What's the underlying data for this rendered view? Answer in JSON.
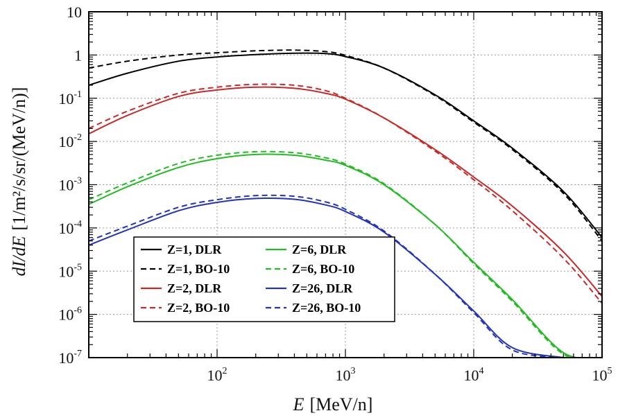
{
  "chart_data": {
    "type": "line",
    "xlabel": "[MeV/n]",
    "xlabel_var": "E",
    "ylabel": "[1/m²/s/sr/(MeV/n)]",
    "ylabel_var": "dI/dE",
    "xscale": "log",
    "yscale": "log",
    "xlim": [
      10,
      100000
    ],
    "ylim": [
      1e-07,
      10
    ],
    "grid": true,
    "legend_placement": "lower-left",
    "x_tick_labels": [
      {
        "base": "10",
        "exp": "2",
        "value": 100
      },
      {
        "base": "10",
        "exp": "3",
        "value": 1000
      },
      {
        "base": "10",
        "exp": "4",
        "value": 10000
      },
      {
        "base": "10",
        "exp": "5",
        "value": 100000
      }
    ],
    "y_tick_labels": [
      {
        "text": "10",
        "base": "",
        "exp": "",
        "value": 10
      },
      {
        "text": "1",
        "base": "",
        "exp": "",
        "value": 1
      },
      {
        "text": "",
        "base": "10",
        "exp": "-1",
        "value": 0.1
      },
      {
        "text": "",
        "base": "10",
        "exp": "-2",
        "value": 0.01
      },
      {
        "text": "",
        "base": "10",
        "exp": "-3",
        "value": 0.001
      },
      {
        "text": "",
        "base": "10",
        "exp": "-4",
        "value": 0.0001
      },
      {
        "text": "",
        "base": "10",
        "exp": "-5",
        "value": 1e-05
      },
      {
        "text": "",
        "base": "10",
        "exp": "-6",
        "value": 1e-06
      },
      {
        "text": "",
        "base": "10",
        "exp": "-7",
        "value": 1e-07
      }
    ],
    "series": [
      {
        "name": "Z=1, DLR",
        "color": "#000000",
        "dashed": false,
        "x": [
          10,
          20,
          50,
          100,
          200,
          400,
          700,
          1000,
          2000,
          5000,
          10000,
          20000,
          50000,
          100000
        ],
        "y": [
          0.2,
          0.38,
          0.72,
          0.9,
          1.02,
          1.1,
          1.08,
          0.92,
          0.5,
          0.12,
          0.03,
          0.007,
          0.0007,
          6e-05
        ]
      },
      {
        "name": "Z=1, BO-10",
        "color": "#000000",
        "dashed": true,
        "x": [
          10,
          20,
          50,
          100,
          200,
          400,
          700,
          1000,
          2000,
          5000,
          10000,
          20000,
          50000,
          100000
        ],
        "y": [
          0.5,
          0.72,
          1.0,
          1.13,
          1.25,
          1.3,
          1.2,
          0.98,
          0.5,
          0.115,
          0.028,
          0.0065,
          0.00063,
          5e-05
        ]
      },
      {
        "name": "Z=2, DLR",
        "color": "#c82828",
        "dashed": false,
        "x": [
          10,
          20,
          50,
          100,
          200,
          400,
          700,
          1000,
          2000,
          5000,
          10000,
          20000,
          50000,
          100000
        ],
        "y": [
          0.015,
          0.04,
          0.11,
          0.155,
          0.18,
          0.17,
          0.13,
          0.095,
          0.035,
          0.0065,
          0.0015,
          0.00032,
          2.8e-05,
          2.6e-06
        ]
      },
      {
        "name": "Z=2, BO-10",
        "color": "#c82828",
        "dashed": true,
        "x": [
          10,
          20,
          50,
          100,
          200,
          400,
          700,
          1000,
          2000,
          5000,
          10000,
          20000,
          50000,
          100000
        ],
        "y": [
          0.02,
          0.05,
          0.13,
          0.18,
          0.21,
          0.2,
          0.15,
          0.1,
          0.035,
          0.006,
          0.0013,
          0.00025,
          2e-05,
          1.8e-06
        ]
      },
      {
        "name": "Z=6, DLR",
        "color": "#22bb22",
        "dashed": false,
        "x": [
          10,
          20,
          50,
          100,
          200,
          400,
          700,
          1000,
          2000,
          5000,
          10000,
          20000,
          50000,
          100000
        ],
        "y": [
          0.00035,
          0.0009,
          0.0025,
          0.004,
          0.005,
          0.0048,
          0.0037,
          0.0028,
          0.001,
          0.00012,
          1.6e-05,
          2.2e-06,
          1.3e-07,
          1e-07
        ]
      },
      {
        "name": "Z=6, BO-10",
        "color": "#22bb22",
        "dashed": true,
        "x": [
          10,
          20,
          50,
          100,
          200,
          400,
          700,
          1000,
          2000,
          5000,
          10000,
          20000,
          50000,
          100000
        ],
        "y": [
          0.00045,
          0.0011,
          0.0031,
          0.0048,
          0.0058,
          0.0055,
          0.0042,
          0.003,
          0.00105,
          0.00012,
          1.5e-05,
          2e-06,
          1.2e-07,
          1e-07
        ]
      },
      {
        "name": "Z=26, DLR",
        "color": "#2233bb",
        "dashed": false,
        "x": [
          10,
          20,
          50,
          100,
          200,
          400,
          700,
          1000,
          2000,
          5000,
          10000,
          20000,
          50000
        ],
        "y": [
          4e-05,
          9e-05,
          0.00025,
          0.00039,
          0.00048,
          0.00046,
          0.00034,
          0.00024,
          8e-05,
          8.5e-06,
          1.2e-06,
          1.7e-07,
          1e-07
        ]
      },
      {
        "name": "Z=26, BO-10",
        "color": "#2233bb",
        "dashed": true,
        "x": [
          10,
          20,
          50,
          100,
          200,
          400,
          700,
          1000,
          2000,
          5000,
          10000,
          20000,
          50000
        ],
        "y": [
          5e-05,
          0.00011,
          0.0003,
          0.00045,
          0.00056,
          0.00054,
          0.0004,
          0.00027,
          8.5e-05,
          8.5e-06,
          1.1e-06,
          1.5e-07,
          1e-07
        ]
      }
    ]
  }
}
